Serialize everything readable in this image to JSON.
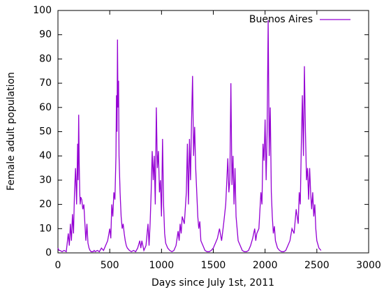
{
  "chart_data": {
    "type": "line",
    "xlabel": "Days since July 1st, 2011",
    "ylabel": "Female adult population",
    "legend": "top-right",
    "xlim": [
      0,
      3000
    ],
    "xticks": [
      0,
      500,
      1000,
      1500,
      2000,
      2500,
      3000
    ],
    "ylim": [
      0,
      100
    ],
    "yticks": [
      0,
      10,
      20,
      30,
      40,
      50,
      60,
      70,
      80,
      90,
      100
    ],
    "x": [
      0,
      10,
      20,
      40,
      60,
      80,
      100,
      110,
      120,
      130,
      140,
      150,
      160,
      170,
      180,
      190,
      195,
      200,
      205,
      210,
      215,
      220,
      230,
      240,
      250,
      260,
      270,
      280,
      290,
      300,
      310,
      320,
      330,
      340,
      350,
      360,
      380,
      400,
      420,
      440,
      460,
      480,
      500,
      510,
      520,
      530,
      540,
      550,
      560,
      565,
      570,
      575,
      580,
      585,
      590,
      600,
      610,
      620,
      630,
      640,
      650,
      660,
      670,
      690,
      710,
      730,
      750,
      770,
      790,
      800,
      810,
      830,
      850,
      870,
      880,
      890,
      900,
      910,
      920,
      930,
      940,
      950,
      960,
      970,
      980,
      990,
      1000,
      1010,
      1020,
      1030,
      1040,
      1060,
      1080,
      1100,
      1120,
      1140,
      1160,
      1170,
      1180,
      1190,
      1200,
      1220,
      1240,
      1250,
      1260,
      1270,
      1280,
      1290,
      1300,
      1310,
      1320,
      1330,
      1340,
      1350,
      1360,
      1370,
      1380,
      1400,
      1420,
      1440,
      1460,
      1480,
      1500,
      1520,
      1540,
      1560,
      1580,
      1600,
      1620,
      1640,
      1650,
      1660,
      1670,
      1680,
      1690,
      1700,
      1710,
      1720,
      1730,
      1740,
      1760,
      1780,
      1800,
      1820,
      1840,
      1860,
      1880,
      1900,
      1910,
      1920,
      1940,
      1960,
      1970,
      1980,
      1990,
      2000,
      2010,
      2020,
      2030,
      2040,
      2050,
      2060,
      2070,
      2080,
      2090,
      2100,
      2120,
      2140,
      2160,
      2180,
      2200,
      2220,
      2240,
      2260,
      2280,
      2300,
      2320,
      2330,
      2340,
      2350,
      2360,
      2370,
      2380,
      2390,
      2400,
      2410,
      2420,
      2430,
      2440,
      2450,
      2460,
      2470,
      2480,
      2490,
      2500,
      2520,
      2540
    ],
    "series": [
      {
        "name": "Buenos Aires",
        "color": "#9400d3",
        "values": [
          2,
          1,
          1,
          0.5,
          1,
          0.5,
          8,
          3,
          12,
          5,
          16,
          8,
          25,
          35,
          20,
          45,
          30,
          57,
          38,
          25,
          20,
          23,
          22,
          18,
          20,
          12,
          5,
          12,
          4,
          2,
          1,
          0.5,
          0.5,
          0.5,
          1,
          0.5,
          1,
          0.5,
          2,
          1,
          3,
          5,
          10,
          6,
          20,
          15,
          25,
          22,
          40,
          65,
          50,
          88,
          60,
          71,
          40,
          25,
          15,
          10,
          12,
          8,
          5,
          3,
          2,
          1,
          0.5,
          1,
          0.5,
          2,
          5,
          2,
          5,
          1,
          3,
          12,
          3,
          12,
          25,
          42,
          30,
          40,
          20,
          60,
          35,
          42,
          25,
          30,
          15,
          47,
          20,
          8,
          4,
          2,
          1,
          0.5,
          1,
          3,
          9,
          5,
          12,
          8,
          15,
          12,
          25,
          45,
          20,
          47,
          30,
          55,
          73,
          40,
          52,
          35,
          25,
          15,
          10,
          13,
          5,
          3,
          1,
          0.5,
          0.5,
          1,
          2,
          4,
          6,
          10,
          5,
          12,
          20,
          39,
          25,
          30,
          70,
          28,
          40,
          20,
          35,
          15,
          10,
          5,
          3,
          1,
          0.5,
          0.5,
          1,
          3,
          6,
          10,
          5,
          8,
          10,
          25,
          20,
          45,
          38,
          55,
          30,
          50,
          96,
          40,
          60,
          25,
          15,
          8,
          11,
          5,
          2,
          1,
          0.5,
          0.5,
          1,
          3,
          5,
          10,
          8,
          18,
          12,
          25,
          20,
          45,
          65,
          40,
          77,
          50,
          30,
          35,
          22,
          35,
          25,
          18,
          25,
          15,
          20,
          10,
          5,
          2,
          1
        ]
      }
    ]
  }
}
